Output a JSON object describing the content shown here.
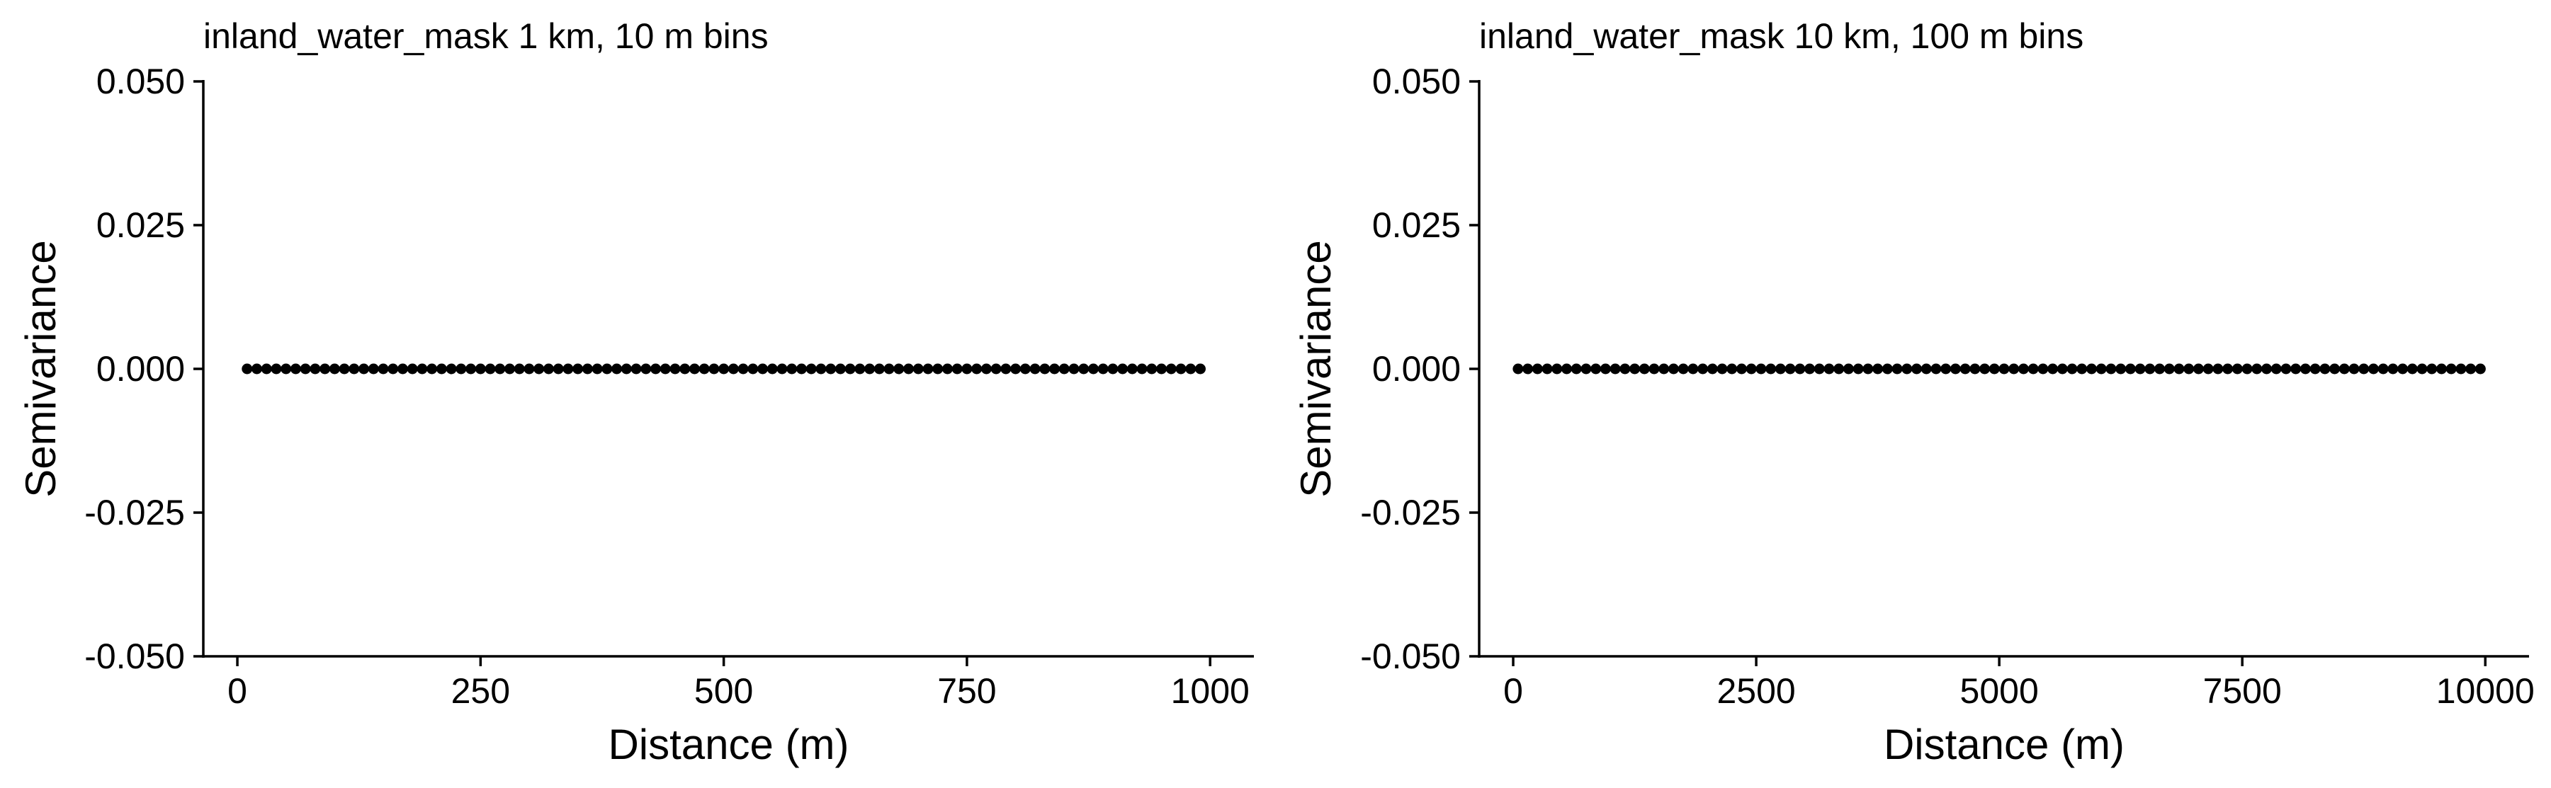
{
  "chart_data": [
    {
      "type": "scatter",
      "title": "inland_water_mask 1 km, 10 m bins",
      "xlabel": "Distance (m)",
      "ylabel": "Semivariance",
      "xlim": [
        -35,
        1045
      ],
      "ylim": [
        -0.05,
        0.05
      ],
      "xticks": [
        0,
        250,
        500,
        750,
        1000
      ],
      "xtick_labels": [
        "0",
        "250",
        "500",
        "750",
        "1000"
      ],
      "yticks": [
        -0.05,
        -0.025,
        0,
        0.025,
        0.05
      ],
      "ytick_labels": [
        "-0.050",
        "-0.025",
        "0.000",
        "0.025",
        "0.050"
      ],
      "x_start": 10,
      "x_step": 10,
      "n_points": 99,
      "y_value": 0,
      "grid": false,
      "point_color": "#000000"
    },
    {
      "type": "scatter",
      "title": "inland_water_mask 10 km, 100 m bins",
      "xlabel": "Distance (m)",
      "ylabel": "Semivariance",
      "xlim": [
        -350,
        10450
      ],
      "ylim": [
        -0.05,
        0.05
      ],
      "xticks": [
        0,
        2500,
        5000,
        7500,
        10000
      ],
      "xtick_labels": [
        "0",
        "2500",
        "5000",
        "7500",
        "10000"
      ],
      "yticks": [
        -0.05,
        -0.025,
        0,
        0.025,
        0.05
      ],
      "ytick_labels": [
        "-0.050",
        "-0.025",
        "0.000",
        "0.025",
        "0.050"
      ],
      "x_start": 50,
      "x_step": 100,
      "n_points": 100,
      "y_value": 0,
      "grid": false,
      "point_color": "#000000"
    }
  ]
}
